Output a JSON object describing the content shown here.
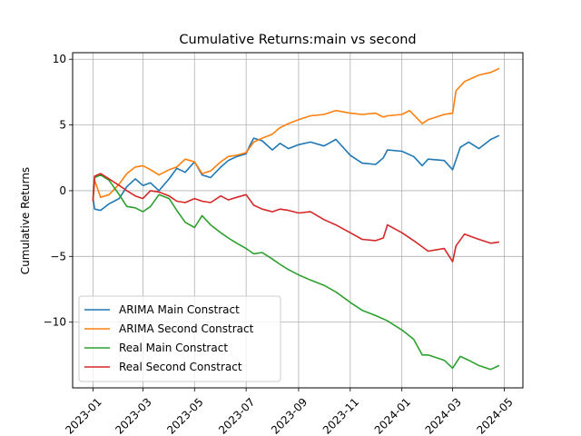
{
  "chart_data": {
    "type": "line",
    "title": "Cumulative Returns:main vs second",
    "xlabel": "",
    "ylabel": "Cumulative Returns",
    "xlim": [
      "2022-12-08",
      "2024-05-23"
    ],
    "ylim": [
      -15,
      10.5
    ],
    "x_ticks": [
      "2023-01",
      "2023-03",
      "2023-05",
      "2023-07",
      "2023-09",
      "2023-11",
      "2024-01",
      "2024-03",
      "2024-05"
    ],
    "y_ticks": [
      -10,
      -5,
      0,
      5,
      10
    ],
    "y_tick_labels": [
      "−10",
      "−5",
      "0",
      "5",
      "10"
    ],
    "grid": true,
    "legend_position": "lower-left",
    "series": [
      {
        "name": "ARIMA Main Constract",
        "color": "#1f77b4",
        "points": [
          [
            "2023-01-01",
            -0.5
          ],
          [
            "2023-01-03",
            -1.4
          ],
          [
            "2023-01-10",
            -1.5
          ],
          [
            "2023-01-20",
            -1.0
          ],
          [
            "2023-02-01",
            -0.6
          ],
          [
            "2023-02-10",
            0.3
          ],
          [
            "2023-02-20",
            0.9
          ],
          [
            "2023-03-01",
            0.4
          ],
          [
            "2023-03-10",
            0.6
          ],
          [
            "2023-03-20",
            0.0
          ],
          [
            "2023-04-01",
            0.9
          ],
          [
            "2023-04-10",
            1.7
          ],
          [
            "2023-04-20",
            1.4
          ],
          [
            "2023-05-01",
            2.2
          ],
          [
            "2023-05-10",
            1.2
          ],
          [
            "2023-05-20",
            1.0
          ],
          [
            "2023-06-01",
            1.8
          ],
          [
            "2023-06-10",
            2.3
          ],
          [
            "2023-06-20",
            2.6
          ],
          [
            "2023-07-01",
            2.8
          ],
          [
            "2023-07-05",
            3.4
          ],
          [
            "2023-07-10",
            4.0
          ],
          [
            "2023-07-20",
            3.8
          ],
          [
            "2023-08-01",
            3.1
          ],
          [
            "2023-08-10",
            3.6
          ],
          [
            "2023-08-20",
            3.2
          ],
          [
            "2023-09-01",
            3.5
          ],
          [
            "2023-09-15",
            3.7
          ],
          [
            "2023-10-01",
            3.4
          ],
          [
            "2023-10-15",
            3.9
          ],
          [
            "2023-11-01",
            2.7
          ],
          [
            "2023-11-15",
            2.1
          ],
          [
            "2023-12-01",
            2.0
          ],
          [
            "2023-12-10",
            2.5
          ],
          [
            "2023-12-15",
            3.1
          ],
          [
            "2024-01-01",
            3.0
          ],
          [
            "2024-01-15",
            2.6
          ],
          [
            "2024-01-25",
            1.9
          ],
          [
            "2024-02-01",
            2.4
          ],
          [
            "2024-02-20",
            2.3
          ],
          [
            "2024-03-01",
            1.6
          ],
          [
            "2024-03-10",
            3.3
          ],
          [
            "2024-03-20",
            3.7
          ],
          [
            "2024-04-01",
            3.2
          ],
          [
            "2024-04-15",
            3.9
          ],
          [
            "2024-04-25",
            4.2
          ]
        ]
      },
      {
        "name": "ARIMA Second Constract",
        "color": "#ff7f0e",
        "points": [
          [
            "2023-01-01",
            -0.8
          ],
          [
            "2023-01-03",
            0.8
          ],
          [
            "2023-01-10",
            -0.5
          ],
          [
            "2023-01-20",
            -0.3
          ],
          [
            "2023-02-01",
            0.5
          ],
          [
            "2023-02-10",
            1.3
          ],
          [
            "2023-02-20",
            1.8
          ],
          [
            "2023-03-01",
            1.9
          ],
          [
            "2023-03-10",
            1.6
          ],
          [
            "2023-03-20",
            1.2
          ],
          [
            "2023-04-01",
            1.6
          ],
          [
            "2023-04-10",
            1.8
          ],
          [
            "2023-04-20",
            2.4
          ],
          [
            "2023-05-01",
            2.2
          ],
          [
            "2023-05-10",
            1.3
          ],
          [
            "2023-05-20",
            1.5
          ],
          [
            "2023-06-01",
            2.2
          ],
          [
            "2023-06-10",
            2.6
          ],
          [
            "2023-06-20",
            2.7
          ],
          [
            "2023-07-01",
            2.9
          ],
          [
            "2023-07-10",
            3.7
          ],
          [
            "2023-07-20",
            4.0
          ],
          [
            "2023-08-01",
            4.3
          ],
          [
            "2023-08-10",
            4.8
          ],
          [
            "2023-08-20",
            5.1
          ],
          [
            "2023-09-01",
            5.4
          ],
          [
            "2023-09-15",
            5.7
          ],
          [
            "2023-10-01",
            5.8
          ],
          [
            "2023-10-15",
            6.1
          ],
          [
            "2023-11-01",
            5.9
          ],
          [
            "2023-11-15",
            5.8
          ],
          [
            "2023-12-01",
            5.9
          ],
          [
            "2023-12-10",
            5.6
          ],
          [
            "2023-12-15",
            5.7
          ],
          [
            "2024-01-01",
            5.8
          ],
          [
            "2024-01-10",
            6.1
          ],
          [
            "2024-01-25",
            5.1
          ],
          [
            "2024-02-01",
            5.4
          ],
          [
            "2024-02-20",
            5.8
          ],
          [
            "2024-03-01",
            5.9
          ],
          [
            "2024-03-05",
            7.6
          ],
          [
            "2024-03-15",
            8.3
          ],
          [
            "2024-04-01",
            8.8
          ],
          [
            "2024-04-15",
            9.0
          ],
          [
            "2024-04-25",
            9.3
          ]
        ]
      },
      {
        "name": "Real Main Constract",
        "color": "#2ca02c",
        "points": [
          [
            "2023-01-01",
            -0.6
          ],
          [
            "2023-01-03",
            1.0
          ],
          [
            "2023-01-10",
            1.2
          ],
          [
            "2023-01-20",
            0.8
          ],
          [
            "2023-02-01",
            -0.3
          ],
          [
            "2023-02-10",
            -1.2
          ],
          [
            "2023-02-20",
            -1.3
          ],
          [
            "2023-03-01",
            -1.6
          ],
          [
            "2023-03-10",
            -1.2
          ],
          [
            "2023-03-20",
            -0.3
          ],
          [
            "2023-04-01",
            -0.6
          ],
          [
            "2023-04-10",
            -1.5
          ],
          [
            "2023-04-20",
            -2.4
          ],
          [
            "2023-05-01",
            -2.8
          ],
          [
            "2023-05-10",
            -1.9
          ],
          [
            "2023-05-20",
            -2.6
          ],
          [
            "2023-06-01",
            -3.2
          ],
          [
            "2023-06-10",
            -3.6
          ],
          [
            "2023-06-20",
            -4.0
          ],
          [
            "2023-07-01",
            -4.4
          ],
          [
            "2023-07-10",
            -4.8
          ],
          [
            "2023-07-20",
            -4.7
          ],
          [
            "2023-08-01",
            -5.2
          ],
          [
            "2023-08-10",
            -5.6
          ],
          [
            "2023-08-20",
            -6.0
          ],
          [
            "2023-09-01",
            -6.4
          ],
          [
            "2023-09-15",
            -6.8
          ],
          [
            "2023-10-01",
            -7.2
          ],
          [
            "2023-10-15",
            -7.7
          ],
          [
            "2023-11-01",
            -8.5
          ],
          [
            "2023-11-15",
            -9.1
          ],
          [
            "2023-12-01",
            -9.5
          ],
          [
            "2023-12-15",
            -9.9
          ],
          [
            "2024-01-01",
            -10.6
          ],
          [
            "2024-01-15",
            -11.3
          ],
          [
            "2024-01-25",
            -12.5
          ],
          [
            "2024-02-01",
            -12.5
          ],
          [
            "2024-02-20",
            -12.9
          ],
          [
            "2024-03-01",
            -13.5
          ],
          [
            "2024-03-10",
            -12.6
          ],
          [
            "2024-03-20",
            -12.9
          ],
          [
            "2024-04-01",
            -13.3
          ],
          [
            "2024-04-15",
            -13.6
          ],
          [
            "2024-04-25",
            -13.3
          ]
        ]
      },
      {
        "name": "Real Second Constract",
        "color": "#d62728",
        "points": [
          [
            "2023-01-01",
            -0.8
          ],
          [
            "2023-01-03",
            1.1
          ],
          [
            "2023-01-10",
            1.3
          ],
          [
            "2023-01-20",
            0.9
          ],
          [
            "2023-02-01",
            0.4
          ],
          [
            "2023-02-10",
            0.0
          ],
          [
            "2023-02-20",
            -0.4
          ],
          [
            "2023-03-01",
            -0.6
          ],
          [
            "2023-03-10",
            0.0
          ],
          [
            "2023-03-20",
            -0.1
          ],
          [
            "2023-04-01",
            -0.4
          ],
          [
            "2023-04-10",
            -0.8
          ],
          [
            "2023-04-20",
            -0.9
          ],
          [
            "2023-05-01",
            -0.6
          ],
          [
            "2023-05-10",
            -0.8
          ],
          [
            "2023-05-20",
            -0.9
          ],
          [
            "2023-06-01",
            -0.4
          ],
          [
            "2023-06-10",
            -0.7
          ],
          [
            "2023-06-20",
            -0.5
          ],
          [
            "2023-07-01",
            -0.3
          ],
          [
            "2023-07-10",
            -1.1
          ],
          [
            "2023-07-20",
            -1.4
          ],
          [
            "2023-08-01",
            -1.6
          ],
          [
            "2023-08-10",
            -1.4
          ],
          [
            "2023-08-20",
            -1.5
          ],
          [
            "2023-09-01",
            -1.7
          ],
          [
            "2023-09-15",
            -1.6
          ],
          [
            "2023-10-01",
            -2.2
          ],
          [
            "2023-10-15",
            -2.6
          ],
          [
            "2023-11-01",
            -3.2
          ],
          [
            "2023-11-15",
            -3.7
          ],
          [
            "2023-12-01",
            -3.8
          ],
          [
            "2023-12-10",
            -3.6
          ],
          [
            "2023-12-15",
            -2.6
          ],
          [
            "2024-01-01",
            -3.2
          ],
          [
            "2024-01-15",
            -3.8
          ],
          [
            "2024-02-01",
            -4.6
          ],
          [
            "2024-02-20",
            -4.4
          ],
          [
            "2024-03-01",
            -5.4
          ],
          [
            "2024-03-05",
            -4.2
          ],
          [
            "2024-03-15",
            -3.3
          ],
          [
            "2024-04-01",
            -3.7
          ],
          [
            "2024-04-15",
            -4.0
          ],
          [
            "2024-04-25",
            -3.9
          ]
        ]
      }
    ]
  }
}
